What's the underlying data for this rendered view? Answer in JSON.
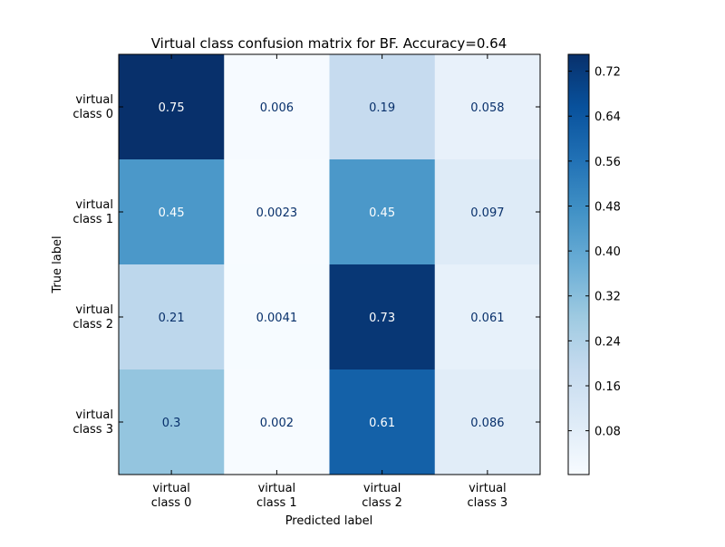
{
  "chart_data": {
    "type": "heatmap",
    "title": "Virtual class confusion matrix for BF. Accuracy=0.64",
    "xlabel": "Predicted label",
    "ylabel": "True label",
    "x_categories": [
      [
        "virtual",
        "class 0"
      ],
      [
        "virtual",
        "class 1"
      ],
      [
        "virtual",
        "class 2"
      ],
      [
        "virtual",
        "class 3"
      ]
    ],
    "y_categories": [
      [
        "virtual",
        "class 0"
      ],
      [
        "virtual",
        "class 1"
      ],
      [
        "virtual",
        "class 2"
      ],
      [
        "virtual",
        "class 3"
      ]
    ],
    "cell_labels": [
      [
        "0.75",
        "0.006",
        "0.19",
        "0.058"
      ],
      [
        "0.45",
        "0.0023",
        "0.45",
        "0.097"
      ],
      [
        "0.21",
        "0.0041",
        "0.73",
        "0.061"
      ],
      [
        "0.3",
        "0.002",
        "0.61",
        "0.086"
      ]
    ],
    "values": [
      [
        0.75,
        0.006,
        0.19,
        0.058
      ],
      [
        0.45,
        0.0023,
        0.45,
        0.097
      ],
      [
        0.21,
        0.0041,
        0.73,
        0.061
      ],
      [
        0.3,
        0.002,
        0.61,
        0.086
      ]
    ],
    "colormap": "Blues",
    "color_range": [
      0.002,
      0.75
    ],
    "colorbar_ticks": [
      "0.08",
      "0.16",
      "0.24",
      "0.32",
      "0.40",
      "0.48",
      "0.56",
      "0.64",
      "0.72"
    ],
    "colorbar_tick_values": [
      0.08,
      0.16,
      0.24,
      0.32,
      0.4,
      0.48,
      0.56,
      0.64,
      0.72
    ],
    "grid": false
  }
}
